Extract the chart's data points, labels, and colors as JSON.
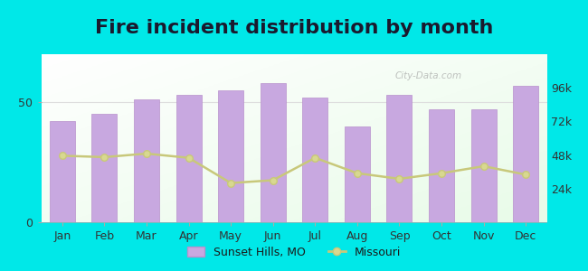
{
  "title": "Fire incident distribution by month",
  "months": [
    "Jan",
    "Feb",
    "Mar",
    "Apr",
    "May",
    "Jun",
    "Jul",
    "Aug",
    "Sep",
    "Oct",
    "Nov",
    "Dec"
  ],
  "bar_values": [
    42,
    45,
    51,
    53,
    55,
    58,
    52,
    40,
    53,
    47,
    47,
    57
  ],
  "line_values": [
    47500,
    46500,
    49000,
    46000,
    28000,
    30000,
    46000,
    35000,
    31000,
    35000,
    40000,
    34000
  ],
  "bar_color": "#c8a8e0",
  "bar_edge_color": "#b890cc",
  "line_color": "#c8c87a",
  "line_marker": "o",
  "line_marker_color": "#d8d890",
  "background_outer": "#00e8e8",
  "left_ylim": [
    0,
    70
  ],
  "left_yticks": [
    0,
    50
  ],
  "right_ylim": [
    0,
    120000
  ],
  "right_yticks": [
    24000,
    48000,
    72000,
    96000
  ],
  "right_yticklabels": [
    "24k",
    "48k",
    "72k",
    "96k"
  ],
  "title_fontsize": 16,
  "watermark": "City-Data.com",
  "legend_labels": [
    "Sunset Hills, MO",
    "Missouri"
  ]
}
